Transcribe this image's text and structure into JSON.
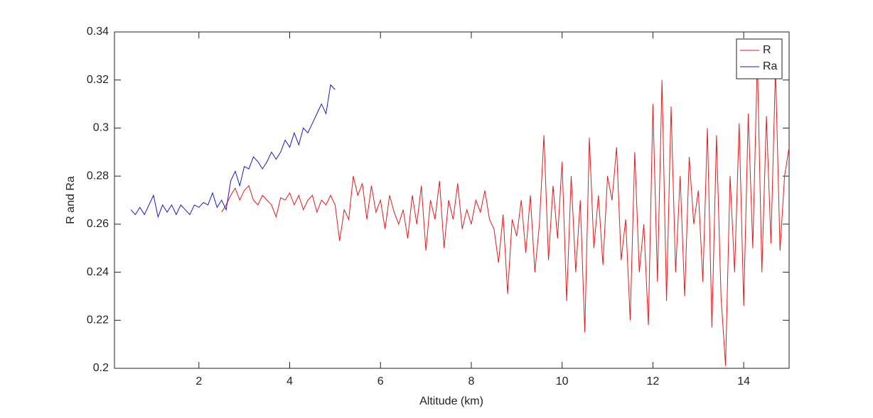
{
  "chart_data": {
    "type": "line",
    "xlabel": "Altitude (km)",
    "ylabel": "R and Ra",
    "xlim": [
      0.14,
      15
    ],
    "xticks": [
      2,
      4,
      6,
      8,
      10,
      12,
      14
    ],
    "ylim": [
      0.2,
      0.34
    ],
    "yticks": [
      0.2,
      0.22,
      0.24,
      0.26,
      0.28,
      0.3,
      0.32,
      0.34
    ],
    "legend": "top-right",
    "series": [
      {
        "name": "R",
        "color": "#e41a1c",
        "x": [
          2.5,
          2.6,
          2.7,
          2.8,
          2.9,
          3.0,
          3.1,
          3.2,
          3.3,
          3.4,
          3.5,
          3.6,
          3.7,
          3.8,
          3.9,
          4.0,
          4.1,
          4.2,
          4.3,
          4.4,
          4.5,
          4.6,
          4.7,
          4.8,
          4.9,
          5.0,
          5.1,
          5.2,
          5.3,
          5.4,
          5.5,
          5.6,
          5.7,
          5.8,
          5.9,
          6.0,
          6.1,
          6.2,
          6.3,
          6.4,
          6.5,
          6.6,
          6.7,
          6.8,
          6.9,
          7.0,
          7.1,
          7.2,
          7.3,
          7.4,
          7.5,
          7.6,
          7.7,
          7.8,
          7.9,
          8.0,
          8.1,
          8.2,
          8.3,
          8.4,
          8.5,
          8.6,
          8.7,
          8.8,
          8.9,
          9.0,
          9.1,
          9.2,
          9.3,
          9.4,
          9.5,
          9.6,
          9.7,
          9.8,
          9.9,
          10.0,
          10.1,
          10.2,
          10.3,
          10.4,
          10.5,
          10.6,
          10.7,
          10.8,
          10.9,
          11.0,
          11.1,
          11.2,
          11.3,
          11.4,
          11.5,
          11.6,
          11.7,
          11.8,
          11.9,
          12.0,
          12.1,
          12.2,
          12.3,
          12.4,
          12.5,
          12.6,
          12.7,
          12.8,
          12.9,
          13.0,
          13.1,
          13.2,
          13.3,
          13.4,
          13.5,
          13.6,
          13.7,
          13.8,
          13.9,
          14.0,
          14.1,
          14.2,
          14.3,
          14.4,
          14.5,
          14.6,
          14.7,
          14.8,
          14.9,
          15.0
        ],
        "values": [
          0.265,
          0.268,
          0.272,
          0.275,
          0.27,
          0.274,
          0.276,
          0.27,
          0.268,
          0.272,
          0.27,
          0.268,
          0.263,
          0.271,
          0.27,
          0.273,
          0.268,
          0.272,
          0.266,
          0.27,
          0.272,
          0.265,
          0.27,
          0.268,
          0.272,
          0.268,
          0.253,
          0.266,
          0.262,
          0.28,
          0.272,
          0.277,
          0.262,
          0.276,
          0.265,
          0.27,
          0.258,
          0.272,
          0.265,
          0.26,
          0.266,
          0.254,
          0.272,
          0.26,
          0.276,
          0.249,
          0.27,
          0.262,
          0.278,
          0.25,
          0.27,
          0.262,
          0.277,
          0.258,
          0.266,
          0.26,
          0.27,
          0.265,
          0.274,
          0.262,
          0.258,
          0.244,
          0.264,
          0.231,
          0.262,
          0.255,
          0.27,
          0.248,
          0.272,
          0.24,
          0.26,
          0.297,
          0.245,
          0.276,
          0.254,
          0.286,
          0.228,
          0.28,
          0.24,
          0.27,
          0.215,
          0.296,
          0.25,
          0.272,
          0.243,
          0.28,
          0.27,
          0.292,
          0.245,
          0.262,
          0.22,
          0.29,
          0.24,
          0.26,
          0.218,
          0.31,
          0.236,
          0.32,
          0.228,
          0.309,
          0.24,
          0.28,
          0.23,
          0.288,
          0.26,
          0.274,
          0.236,
          0.3,
          0.217,
          0.297,
          0.23,
          0.201,
          0.28,
          0.24,
          0.302,
          0.226,
          0.306,
          0.25,
          0.329,
          0.24,
          0.305,
          0.252,
          0.325,
          0.249,
          0.28,
          0.292
        ]
      },
      {
        "name": "Ra",
        "color": "#1a1ac8",
        "x": [
          0.5,
          0.6,
          0.7,
          0.8,
          0.9,
          1.0,
          1.1,
          1.2,
          1.3,
          1.4,
          1.5,
          1.6,
          1.7,
          1.8,
          1.9,
          2.0,
          2.1,
          2.2,
          2.3,
          2.4,
          2.5,
          2.6,
          2.7,
          2.8,
          2.9,
          3.0,
          3.1,
          3.2,
          3.3,
          3.4,
          3.5,
          3.6,
          3.7,
          3.8,
          3.9,
          4.0,
          4.1,
          4.2,
          4.3,
          4.4,
          4.5,
          4.6,
          4.7,
          4.8,
          4.9,
          5.0
        ],
        "values": [
          0.266,
          0.264,
          0.267,
          0.264,
          0.268,
          0.272,
          0.263,
          0.268,
          0.265,
          0.268,
          0.264,
          0.268,
          0.266,
          0.264,
          0.268,
          0.267,
          0.269,
          0.268,
          0.273,
          0.267,
          0.27,
          0.266,
          0.278,
          0.282,
          0.276,
          0.284,
          0.283,
          0.288,
          0.286,
          0.283,
          0.286,
          0.29,
          0.287,
          0.29,
          0.295,
          0.292,
          0.298,
          0.293,
          0.3,
          0.298,
          0.302,
          0.306,
          0.31,
          0.306,
          0.318,
          0.316
        ]
      }
    ]
  }
}
